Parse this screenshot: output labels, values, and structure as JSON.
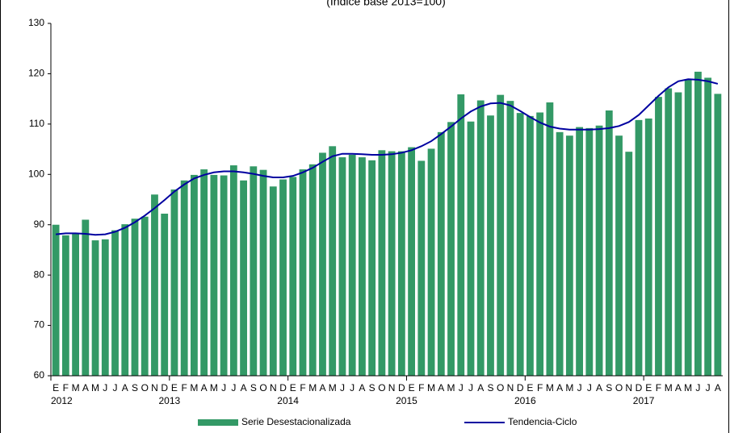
{
  "chart_data": {
    "type": "bar",
    "title": "(Índice base 2013=100)",
    "categories": [
      "E",
      "F",
      "M",
      "A",
      "M",
      "J",
      "J",
      "A",
      "S",
      "O",
      "N",
      "D",
      "E",
      "F",
      "M",
      "A",
      "M",
      "J",
      "J",
      "A",
      "S",
      "O",
      "N",
      "D",
      "E",
      "F",
      "M",
      "A",
      "M",
      "J",
      "J",
      "A",
      "S",
      "O",
      "N",
      "D",
      "E",
      "F",
      "M",
      "A",
      "M",
      "J",
      "J",
      "A",
      "S",
      "O",
      "N",
      "D",
      "E",
      "F",
      "M",
      "A",
      "M",
      "J",
      "J",
      "A",
      "S",
      "O",
      "N",
      "D",
      "E",
      "F",
      "M",
      "A",
      "M",
      "J",
      "J",
      "A"
    ],
    "category_years": [
      "2012",
      null,
      null,
      null,
      null,
      null,
      null,
      null,
      null,
      null,
      null,
      null,
      "2013",
      null,
      null,
      null,
      null,
      null,
      null,
      null,
      null,
      null,
      null,
      null,
      "2014",
      null,
      null,
      null,
      null,
      null,
      null,
      null,
      null,
      null,
      null,
      null,
      "2015",
      null,
      null,
      null,
      null,
      null,
      null,
      null,
      null,
      null,
      null,
      null,
      "2016",
      null,
      null,
      null,
      null,
      null,
      null,
      null,
      null,
      null,
      null,
      null,
      "2017",
      null,
      null,
      null,
      null,
      null,
      null,
      null
    ],
    "series": [
      {
        "name": "Serie Desestacionalizada",
        "type": "bar",
        "color": "#339966",
        "values": [
          90.0,
          87.9,
          88.2,
          91.0,
          86.9,
          87.1,
          88.9,
          90.1,
          91.2,
          91.6,
          96.0,
          92.2,
          97.0,
          98.8,
          99.9,
          101.0,
          99.9,
          99.8,
          101.8,
          98.8,
          101.6,
          100.9,
          97.6,
          99.0,
          99.5,
          101.0,
          102.0,
          104.3,
          105.6,
          103.4,
          103.9,
          103.4,
          102.8,
          104.8,
          104.6,
          104.6,
          105.4,
          102.7,
          105.1,
          108.4,
          110.4,
          115.9,
          110.5,
          114.7,
          111.7,
          115.8,
          114.6,
          112.2,
          111.6,
          112.3,
          114.3,
          108.4,
          107.7,
          109.4,
          109.2,
          109.7,
          112.7,
          107.7,
          104.5,
          110.8,
          111.1,
          115.4,
          117.1,
          116.3,
          118.8,
          120.4,
          119.2,
          116.0
        ]
      },
      {
        "name": "Tendencia-Ciclo",
        "type": "line",
        "color": "#0000a0",
        "values": [
          88.1,
          88.3,
          88.3,
          88.2,
          88.0,
          88.1,
          88.6,
          89.4,
          90.5,
          91.8,
          93.3,
          94.9,
          96.6,
          98.0,
          99.2,
          99.9,
          100.4,
          100.6,
          100.6,
          100.4,
          100.1,
          99.7,
          99.4,
          99.4,
          99.7,
          100.4,
          101.3,
          102.5,
          103.6,
          104.1,
          104.1,
          104.0,
          103.9,
          103.9,
          104.0,
          104.3,
          104.8,
          105.6,
          106.6,
          108.0,
          109.5,
          111.1,
          112.5,
          113.5,
          114.1,
          114.2,
          113.7,
          112.6,
          111.4,
          110.3,
          109.5,
          109.1,
          108.9,
          108.9,
          108.9,
          109.0,
          109.2,
          109.6,
          110.4,
          111.8,
          113.7,
          115.6,
          117.3,
          118.5,
          118.9,
          118.8,
          118.5,
          118.0
        ]
      }
    ],
    "ylim": [
      60,
      130
    ],
    "yticks": [
      60,
      70,
      80,
      90,
      100,
      110,
      120,
      130
    ],
    "grid": false,
    "legend": "bottom"
  }
}
